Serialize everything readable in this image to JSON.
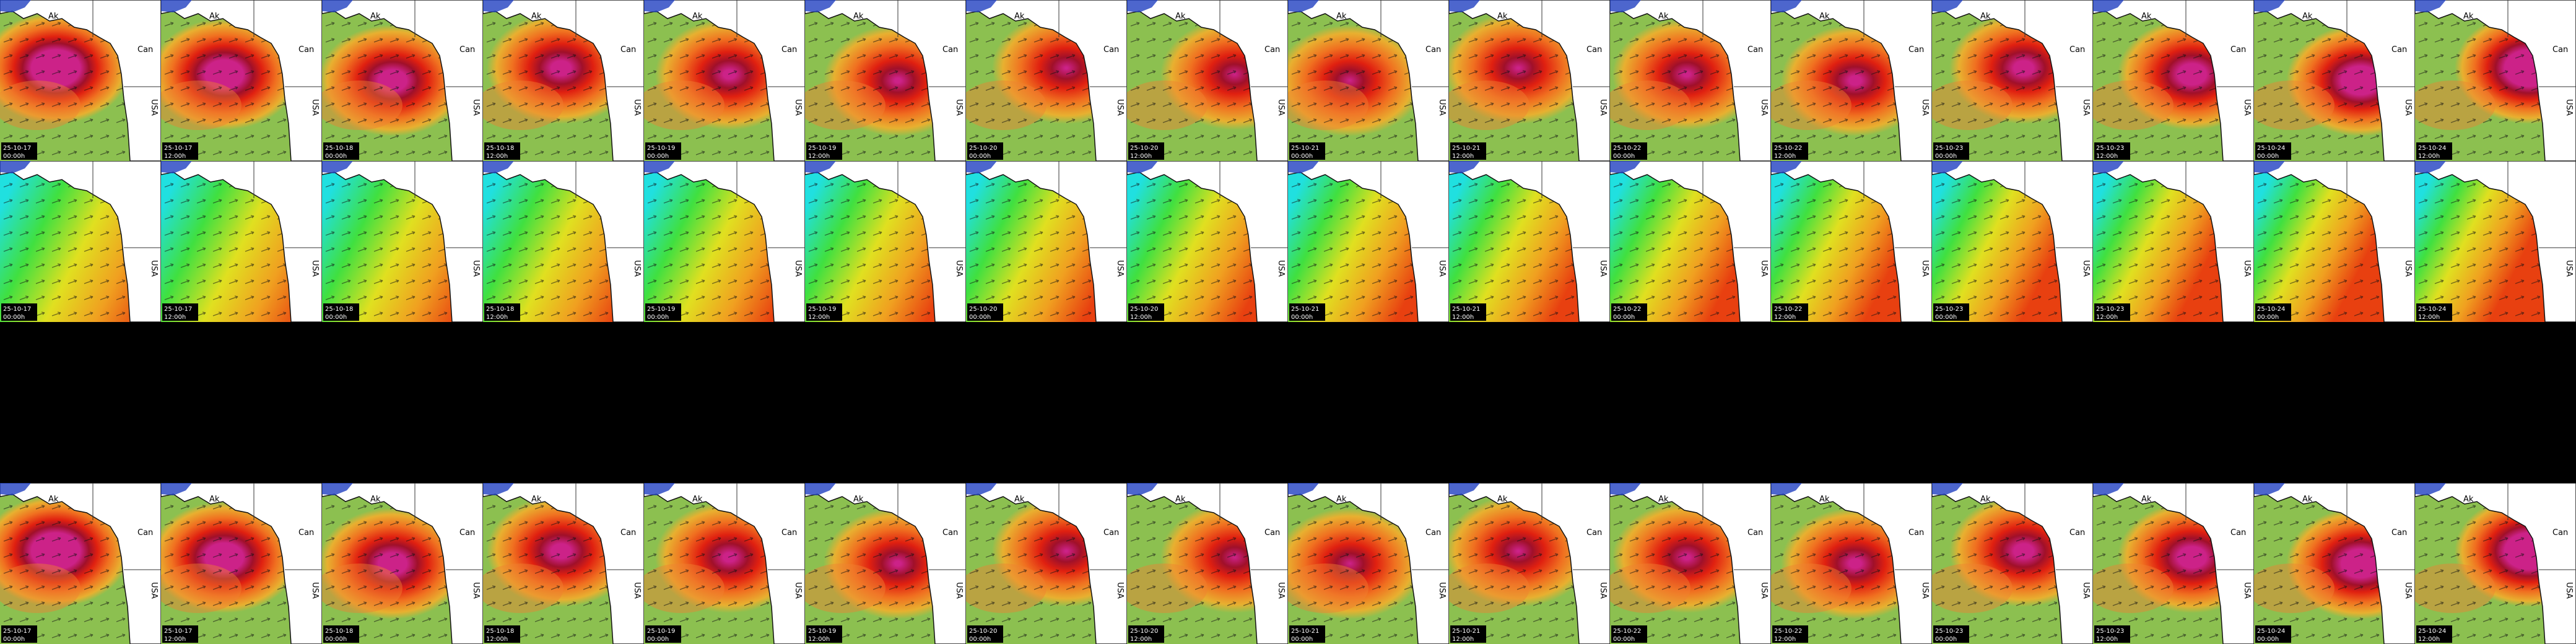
{
  "map_labels": [
    "Ak",
    "Can",
    "USA"
  ],
  "rows": [
    {
      "tiles": [
        {
          "date": "25-10-17",
          "time": "00:00h"
        },
        {
          "date": "25-10-17",
          "time": "12:00h"
        },
        {
          "date": "25-10-18",
          "time": "00:00h"
        },
        {
          "date": "25-10-18",
          "time": "12:00h"
        },
        {
          "date": "25-10-19",
          "time": "00:00h"
        },
        {
          "date": "25-10-19",
          "time": "12:00h"
        },
        {
          "date": "25-10-20",
          "time": "00:00h"
        },
        {
          "date": "25-10-20",
          "time": "12:00h"
        },
        {
          "date": "25-10-21",
          "time": "00:00h"
        },
        {
          "date": "25-10-21",
          "time": "12:00h"
        },
        {
          "date": "25-10-22",
          "time": "00:00h"
        },
        {
          "date": "25-10-22",
          "time": "12:00h"
        },
        {
          "date": "25-10-23",
          "time": "00:00h"
        },
        {
          "date": "25-10-23",
          "time": "12:00h"
        },
        {
          "date": "25-10-24",
          "time": "00:00h"
        },
        {
          "date": "25-10-24",
          "time": "12:00h"
        }
      ]
    },
    {
      "tiles": [
        {
          "date": "25-10-17",
          "time": "00:00h"
        },
        {
          "date": "25-10-17",
          "time": "12:00h"
        },
        {
          "date": "25-10-18",
          "time": "00:00h"
        },
        {
          "date": "25-10-18",
          "time": "12:00h"
        },
        {
          "date": "25-10-19",
          "time": "00:00h"
        },
        {
          "date": "25-10-19",
          "time": "12:00h"
        },
        {
          "date": "25-10-20",
          "time": "00:00h"
        },
        {
          "date": "25-10-20",
          "time": "12:00h"
        },
        {
          "date": "25-10-21",
          "time": "00:00h"
        },
        {
          "date": "25-10-21",
          "time": "12:00h"
        },
        {
          "date": "25-10-22",
          "time": "00:00h"
        },
        {
          "date": "25-10-22",
          "time": "12:00h"
        },
        {
          "date": "25-10-23",
          "time": "00:00h"
        },
        {
          "date": "25-10-23",
          "time": "12:00h"
        },
        {
          "date": "25-10-24",
          "time": "00:00h"
        },
        {
          "date": "25-10-24",
          "time": "12:00h"
        }
      ]
    },
    {
      "tiles": []
    },
    {
      "tiles": [
        {
          "date": "25-10-17",
          "time": "00:00h"
        },
        {
          "date": "25-10-17",
          "time": "12:00h"
        },
        {
          "date": "25-10-18",
          "time": "00:00h"
        },
        {
          "date": "25-10-18",
          "time": "12:00h"
        },
        {
          "date": "25-10-19",
          "time": "00:00h"
        },
        {
          "date": "25-10-19",
          "time": "12:00h"
        },
        {
          "date": "25-10-20",
          "time": "00:00h"
        },
        {
          "date": "25-10-20",
          "time": "12:00h"
        },
        {
          "date": "25-10-21",
          "time": "00:00h"
        },
        {
          "date": "25-10-21",
          "time": "12:00h"
        },
        {
          "date": "25-10-22",
          "time": "00:00h"
        },
        {
          "date": "25-10-22",
          "time": "12:00h"
        },
        {
          "date": "25-10-23",
          "time": "00:00h"
        },
        {
          "date": "25-10-23",
          "time": "12:00h"
        },
        {
          "date": "25-10-24",
          "time": "00:00h"
        },
        {
          "date": "25-10-24",
          "time": "12:00h"
        }
      ]
    }
  ]
}
